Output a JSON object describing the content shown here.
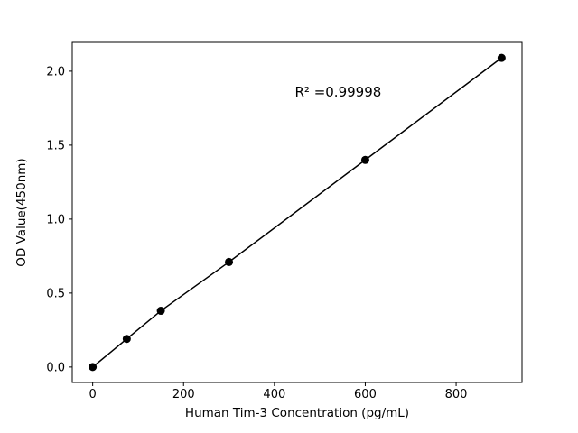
{
  "chart_data": {
    "type": "scatter",
    "title": "",
    "xlabel": "Human Tim-3 Concentration (pg/mL)",
    "ylabel": "OD Value(450nm)",
    "x": [
      0,
      75,
      150,
      300,
      600,
      900
    ],
    "y": [
      0.0,
      0.19,
      0.38,
      0.71,
      1.4,
      2.09
    ],
    "xlim": [
      -45,
      945
    ],
    "ylim": [
      -0.1045,
      2.1945
    ],
    "xticks": [
      0,
      200,
      400,
      600,
      800
    ],
    "xtick_labels": [
      "0",
      "200",
      "400",
      "600",
      "800"
    ],
    "yticks": [
      0.0,
      0.5,
      1.0,
      1.5,
      2.0
    ],
    "ytick_labels": [
      "0.0",
      "0.5",
      "1.0",
      "1.5",
      "2.0"
    ],
    "grid": false,
    "legend": null,
    "line_color": "#000000",
    "marker_color": "#000000",
    "background_color": "#ffffff",
    "annotation": {
      "text": "R² =0.99998",
      "x": 445,
      "y": 1.83
    }
  }
}
